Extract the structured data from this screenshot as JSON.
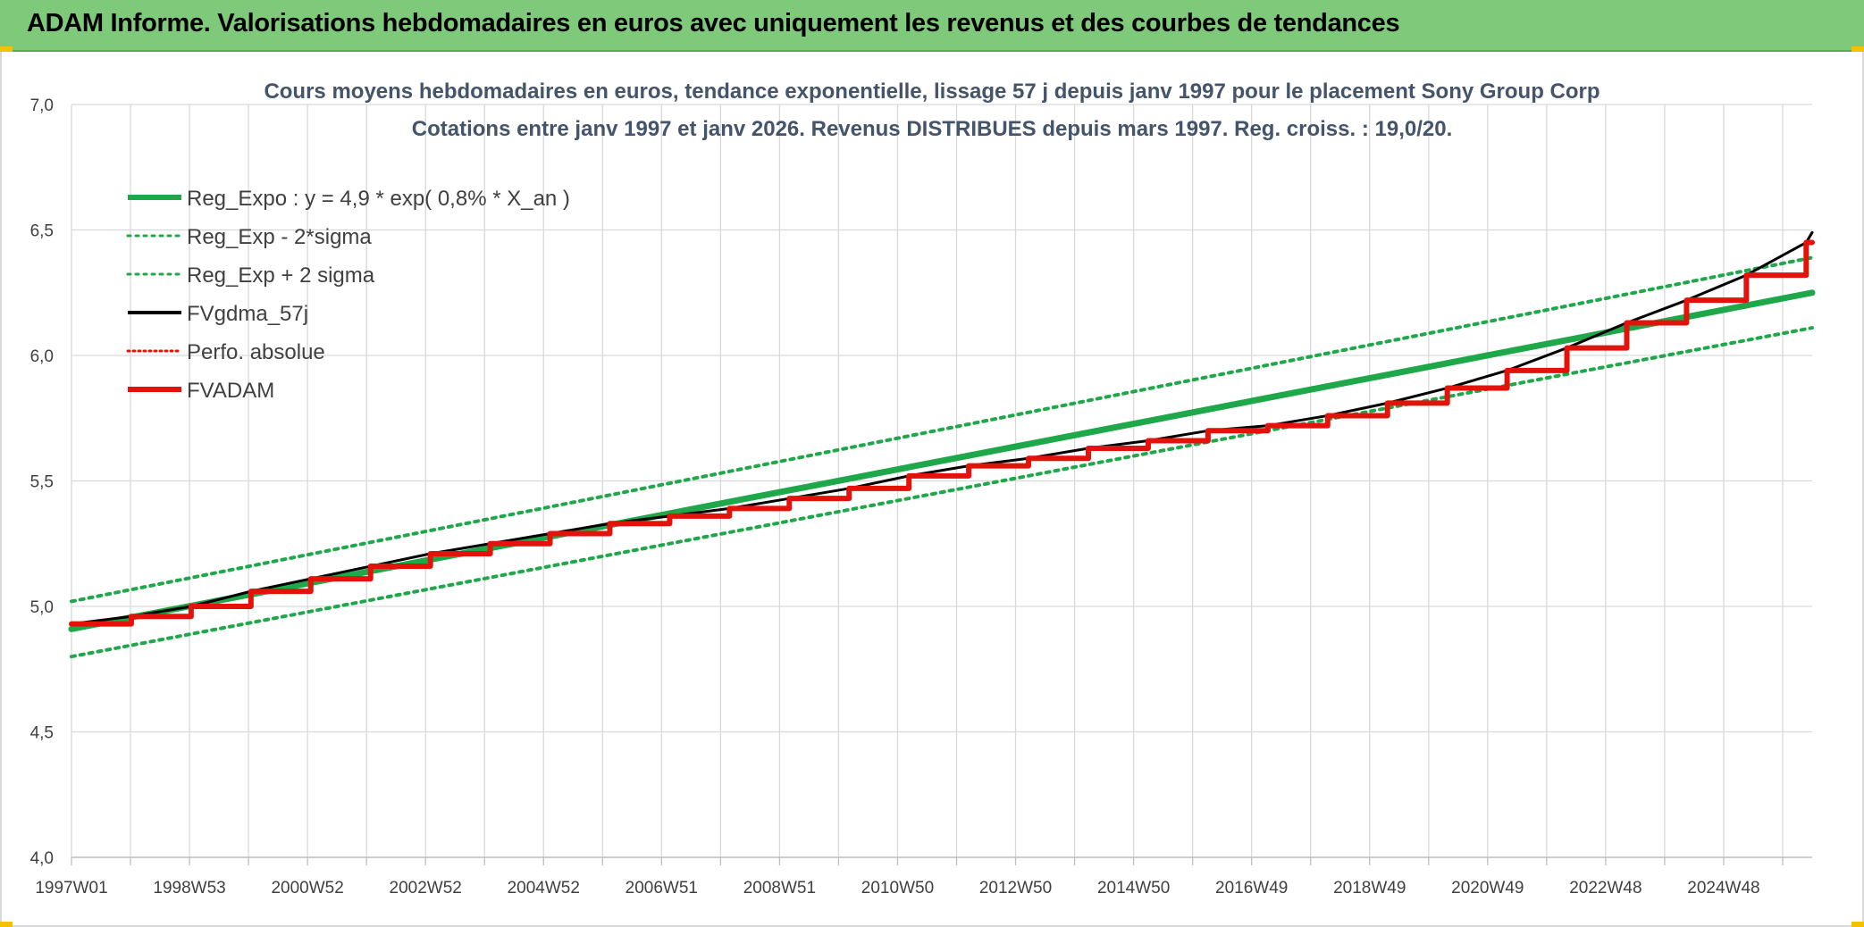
{
  "banner": {
    "title": "ADAM Informe. Valorisations hebdomadaires en euros avec uniquement les revenus et des courbes de tendances"
  },
  "colors": {
    "banner_bg": "#7fc97a",
    "reg_green": "#1fa84a",
    "fvadam_red": "#e3120b",
    "fvgdma_black": "#000000",
    "perfo_red": "#e3120b"
  },
  "chart_data": {
    "type": "line",
    "title": "Cours moyens hebdomadaires en euros, tendance exponentielle, lissage 57 j depuis janv 1997 pour le placement Sony Group Corp",
    "subtitle": "Cotations entre janv 1997 et janv 2026. Revenus DISTRIBUES depuis mars 1997. Reg. croiss. : 19,0/20.",
    "xlabel": "",
    "ylabel": "",
    "x_tick_labels": [
      "1997W01",
      "1998W53",
      "2000W52",
      "2002W52",
      "2004W52",
      "2006W51",
      "2008W51",
      "2010W50",
      "2012W50",
      "2014W50",
      "2016W49",
      "2018W49",
      "2020W49",
      "2022W48",
      "2024W48"
    ],
    "x_range": [
      1997.0,
      2026.1
    ],
    "ylim": [
      4.0,
      7.0
    ],
    "y_ticks": [
      "4,0",
      "4,5",
      "5,0",
      "5,5",
      "6,0",
      "6,5",
      "7,0"
    ],
    "grid": true,
    "legend_position": "top-left",
    "series": [
      {
        "name": "Reg_Expo : y = 4,9 * exp( 0,8% *  X_an )",
        "style": "solid-thick",
        "color": "#1fa84a",
        "x": [
          1997.0,
          2026.1
        ],
        "y": [
          4.91,
          6.25
        ]
      },
      {
        "name": "Reg_Exp - 2*sigma",
        "style": "dotted",
        "color": "#1fa84a",
        "x": [
          1997.0,
          2026.1
        ],
        "y": [
          4.8,
          6.11
        ]
      },
      {
        "name": "Reg_Exp + 2 sigma",
        "style": "dotted",
        "color": "#1fa84a",
        "x": [
          1997.0,
          2026.1
        ],
        "y": [
          5.02,
          6.39
        ]
      },
      {
        "name": "FVgdma_57j",
        "style": "solid",
        "color": "#000000",
        "x": [
          1997.0,
          1998.0,
          1999.0,
          2000.0,
          2001.0,
          2002.0,
          2003.0,
          2004.0,
          2005.0,
          2006.0,
          2007.0,
          2008.0,
          2009.0,
          2010.0,
          2011.0,
          2012.0,
          2013.0,
          2014.0,
          2015.0,
          2016.0,
          2017.0,
          2018.0,
          2019.0,
          2020.0,
          2021.0,
          2022.0,
          2023.0,
          2024.0,
          2025.0,
          2026.0
        ],
        "y": [
          4.93,
          4.96,
          5.0,
          5.06,
          5.11,
          5.16,
          5.21,
          5.25,
          5.29,
          5.33,
          5.36,
          5.39,
          5.43,
          5.47,
          5.52,
          5.56,
          5.59,
          5.63,
          5.66,
          5.7,
          5.72,
          5.76,
          5.81,
          5.87,
          5.94,
          6.03,
          6.13,
          6.22,
          6.32,
          6.45
        ]
      },
      {
        "name": "Perfo. absolue",
        "style": "dotted",
        "color": "#e3120b",
        "x": [],
        "y": []
      },
      {
        "name": "FVADAM",
        "style": "step-thick",
        "color": "#e3120b",
        "x": [
          1997.0,
          1998.0,
          1999.0,
          2000.0,
          2001.0,
          2002.0,
          2003.0,
          2004.0,
          2005.0,
          2006.0,
          2007.0,
          2008.0,
          2009.0,
          2010.0,
          2011.0,
          2012.0,
          2013.0,
          2014.0,
          2015.0,
          2016.0,
          2017.0,
          2018.0,
          2019.0,
          2020.0,
          2021.0,
          2022.0,
          2023.0,
          2024.0,
          2025.0,
          2026.0
        ],
        "y": [
          4.93,
          4.96,
          5.0,
          5.06,
          5.11,
          5.16,
          5.21,
          5.25,
          5.29,
          5.33,
          5.36,
          5.39,
          5.43,
          5.47,
          5.52,
          5.56,
          5.59,
          5.63,
          5.66,
          5.7,
          5.72,
          5.76,
          5.81,
          5.87,
          5.94,
          6.03,
          6.13,
          6.22,
          6.32,
          6.45
        ]
      }
    ]
  }
}
